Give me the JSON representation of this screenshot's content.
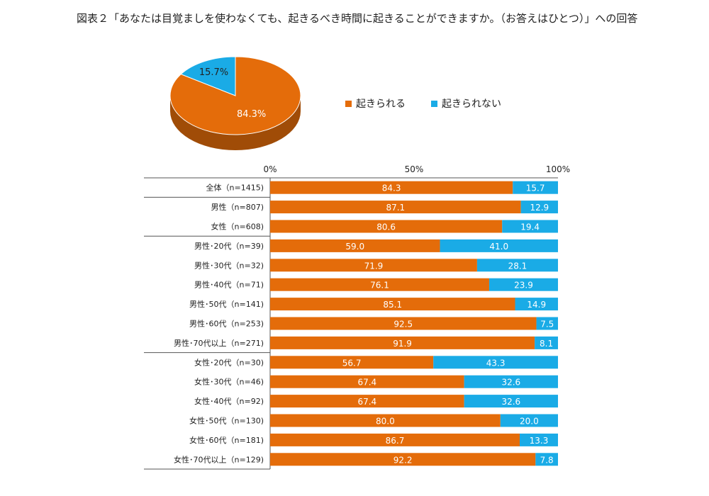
{
  "title": "図表２「あなたは目覚ましを使わなくても、起きるべき時間に起きることができますか。（お答えはひとつ）」への回答",
  "colors": {
    "can": "#e46c0a",
    "cannot": "#1aabe6"
  },
  "pie_data": {
    "type": "pie",
    "slices": [
      {
        "name": "起きられる",
        "value": 84.3,
        "label": "84.3%"
      },
      {
        "name": "起きられない",
        "value": 15.7,
        "label": "15.7%"
      }
    ]
  },
  "legend": [
    "起きられる",
    "起きられない"
  ],
  "chart_data": {
    "type": "bar",
    "stacked": true,
    "orientation": "horizontal",
    "xlim": [
      0,
      100
    ],
    "x_ticks": [
      "0%",
      "50%",
      "100%"
    ],
    "categories": [
      "全体（n=1415)",
      "男性（n=807)",
      "女性（n=608)",
      "男性･20代（n=39)",
      "男性･30代（n=32)",
      "男性･40代（n=71)",
      "男性･50代（n=141)",
      "男性･60代（n=253)",
      "男性･70代以上（n=271)",
      "女性･20代（n=30)",
      "女性･30代（n=46)",
      "女性･40代（n=92)",
      "女性･50代（n=130)",
      "女性･60代（n=181)",
      "女性･70代以上（n=129)"
    ],
    "series": [
      {
        "name": "起きられる",
        "values": [
          84.3,
          87.1,
          80.6,
          59.0,
          71.9,
          76.1,
          85.1,
          92.5,
          91.9,
          56.7,
          67.4,
          67.4,
          80.0,
          86.7,
          92.2
        ],
        "labels": [
          "84.3",
          "87.1",
          "80.6",
          "59.0",
          "71.9",
          "76.1",
          "85.1",
          "92.5",
          "91.9",
          "56.7",
          "67.4",
          "67.4",
          "80.0",
          "86.7",
          "92.2"
        ]
      },
      {
        "name": "起きられない",
        "values": [
          15.7,
          12.9,
          19.4,
          41.0,
          28.1,
          23.9,
          14.9,
          7.5,
          8.1,
          43.3,
          32.6,
          32.6,
          20.0,
          13.3,
          7.8
        ],
        "labels": [
          "15.7",
          "12.9",
          "19.4",
          "41.0",
          "28.1",
          "23.9",
          "14.9",
          "7.5",
          "8.1",
          "43.3",
          "32.6",
          "32.6",
          "20.0",
          "13.3",
          "7.8"
        ]
      }
    ]
  }
}
